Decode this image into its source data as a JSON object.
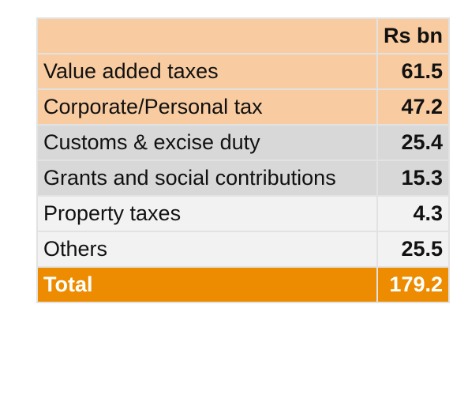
{
  "table": {
    "header": {
      "label": "",
      "value": "Rs bn"
    },
    "rows": [
      {
        "label": "Value added taxes",
        "value": "61.5"
      },
      {
        "label": "Corporate/Personal tax",
        "value": "47.2"
      },
      {
        "label": "Customs & excise duty",
        "value": "25.4"
      },
      {
        "label": "Grants and social contributions",
        "value": "15.3"
      },
      {
        "label": "Property taxes",
        "value": "4.3"
      },
      {
        "label": "Others",
        "value": "25.5"
      }
    ],
    "total": {
      "label": "Total",
      "value": "179.2"
    }
  },
  "colors": {
    "peach": "#f8cba0",
    "grey": "#d8d8d8",
    "light": "#f2f2f2",
    "total": "#ed8c00"
  }
}
